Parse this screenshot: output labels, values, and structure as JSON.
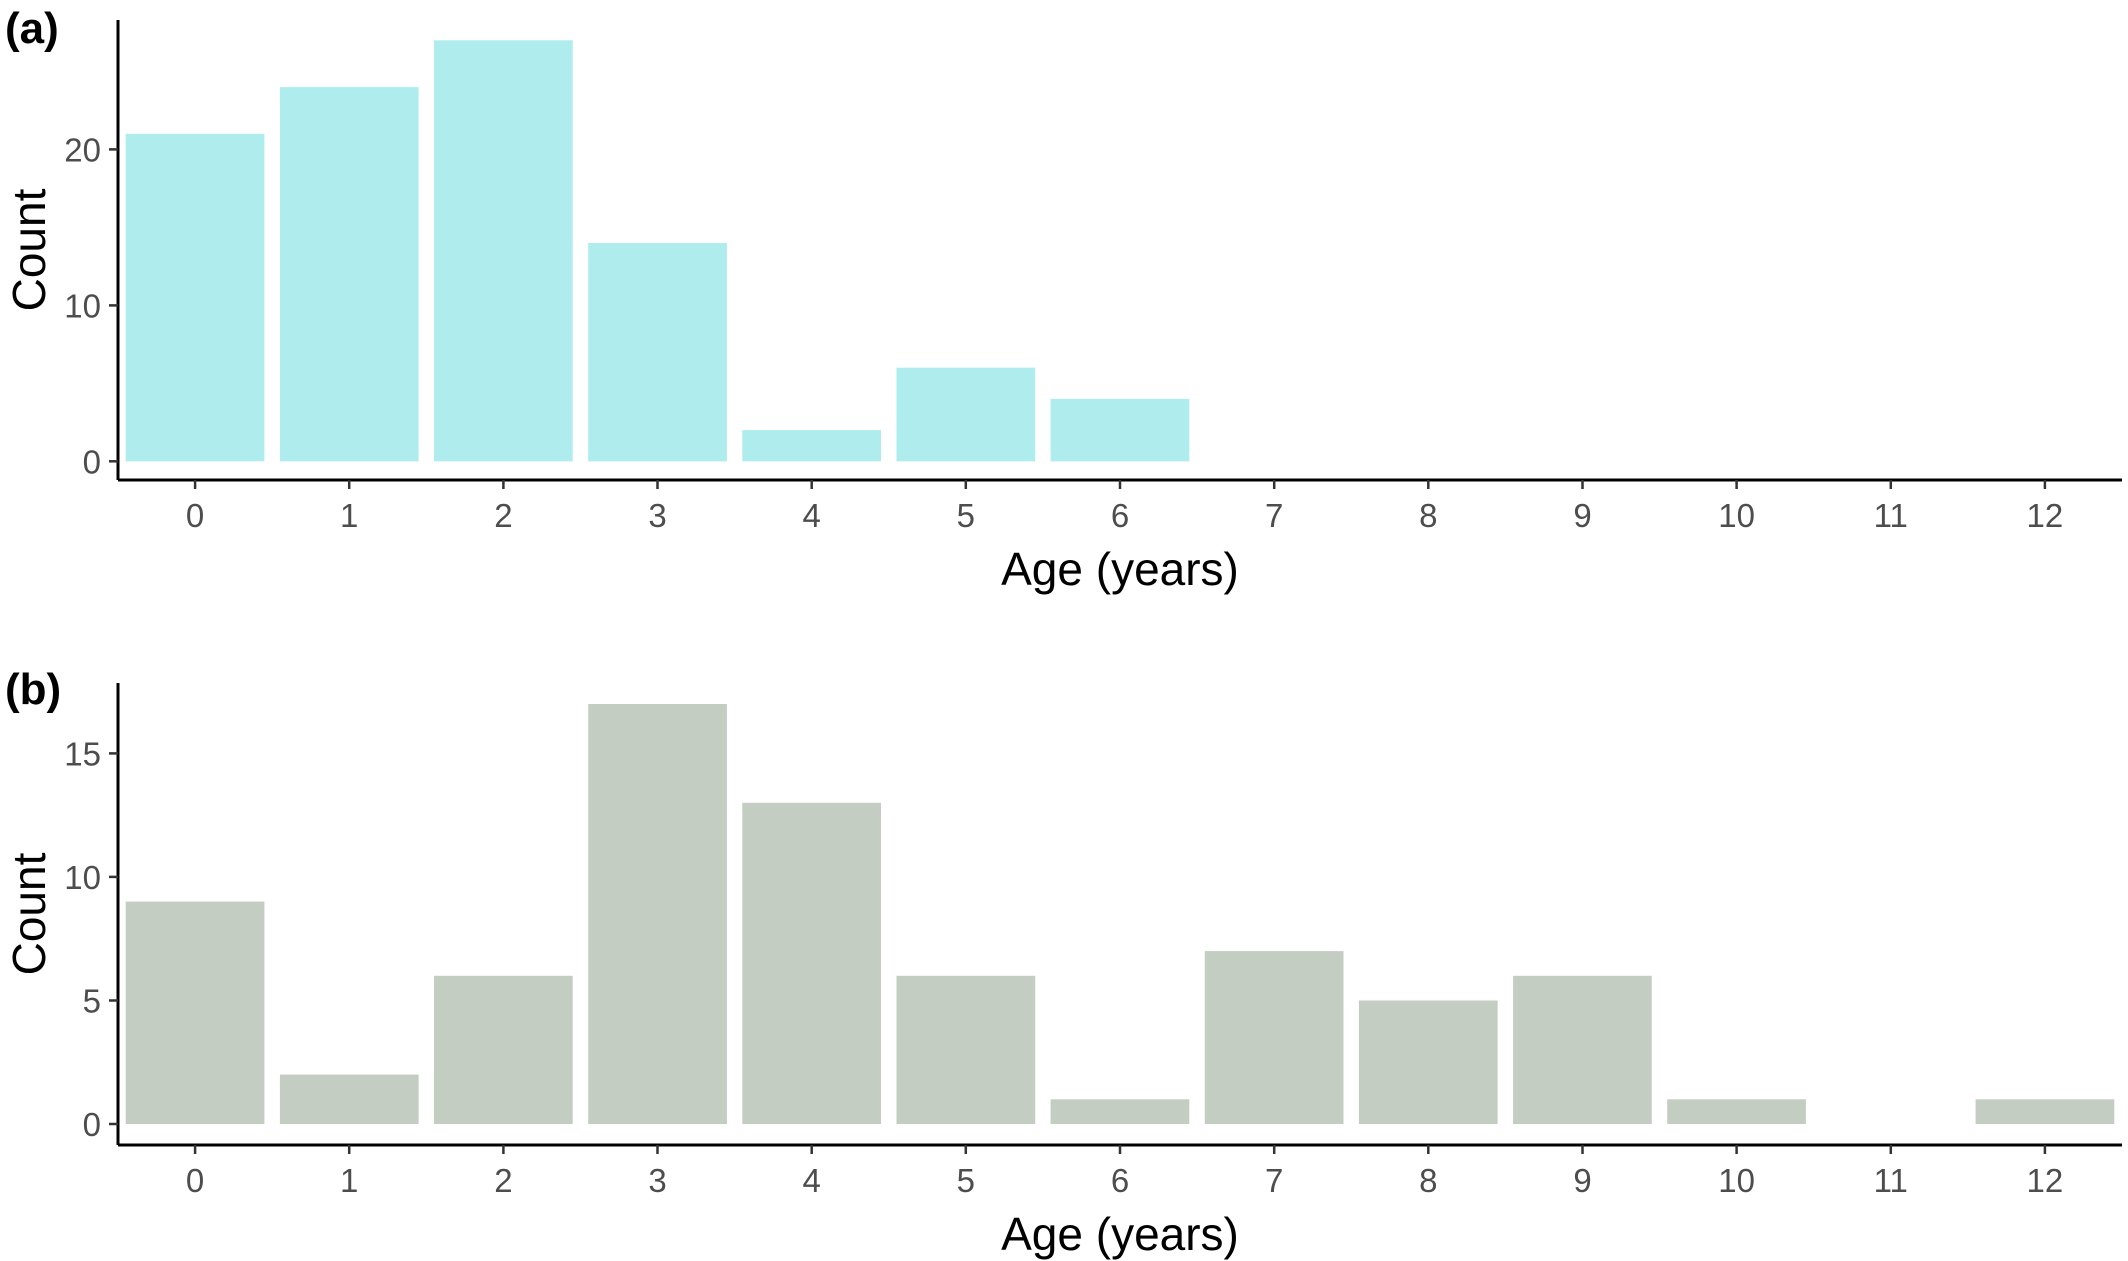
{
  "chart_data": [
    {
      "type": "bar",
      "panel_label": "(a)",
      "xlabel": "Age (years)",
      "ylabel": "Count",
      "categories": [
        "0",
        "1",
        "2",
        "3",
        "4",
        "5",
        "6",
        "7",
        "8",
        "9",
        "10",
        "11",
        "12"
      ],
      "values": [
        21,
        24,
        27,
        14,
        2,
        6,
        4,
        0,
        0,
        0,
        0,
        0,
        0
      ],
      "ylim": [
        -1.2,
        28.3
      ],
      "yticks": [
        "0",
        "10",
        "20"
      ],
      "ytick_values": [
        0,
        10,
        20
      ],
      "bar_color": "#aeecee",
      "grid": false,
      "legend": "none"
    },
    {
      "type": "bar",
      "panel_label": "(b)",
      "xlabel": "Age (years)",
      "ylabel": "Count",
      "categories": [
        "0",
        "1",
        "2",
        "3",
        "4",
        "5",
        "6",
        "7",
        "8",
        "9",
        "10",
        "11",
        "12"
      ],
      "values": [
        9,
        2,
        6,
        17,
        13,
        6,
        1,
        7,
        5,
        6,
        1,
        0,
        1
      ],
      "ylim": [
        -0.85,
        17.85
      ],
      "yticks": [
        "0",
        "5",
        "10",
        "15"
      ],
      "ytick_values": [
        0,
        5,
        10,
        15
      ],
      "bar_color": "#c3cdc2",
      "grid": false,
      "legend": "none"
    }
  ]
}
